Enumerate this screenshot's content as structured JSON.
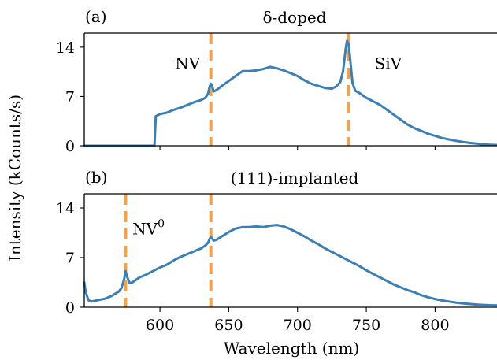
{
  "chart_data": [
    {
      "type": "line",
      "panel_label": "(a)",
      "title": "δ-doped",
      "xlim": [
        545,
        845
      ],
      "ylim": [
        0,
        16
      ],
      "yticks": [
        0,
        7,
        14
      ],
      "xticks": [
        600,
        650,
        700,
        750,
        800
      ],
      "ylabel": "Intensity (kCounts/s)",
      "markers": [
        637,
        737
      ],
      "annotations": [
        {
          "text": "NV⁻",
          "x": 611,
          "y": 10.9
        },
        {
          "text": "SiV",
          "x": 756,
          "y": 10.9
        }
      ],
      "series": [
        {
          "x": [
            545,
            560,
            575,
            590,
            596,
            597,
            598,
            600,
            605,
            610,
            615,
            620,
            625,
            630,
            633,
            635,
            636,
            637,
            638,
            639,
            641,
            645,
            650,
            655,
            660,
            665,
            670,
            675,
            680,
            685,
            690,
            695,
            700,
            705,
            710,
            715,
            720,
            725,
            728,
            731,
            733,
            734,
            735,
            736,
            737,
            738,
            739,
            740,
            742,
            745,
            750,
            755,
            760,
            765,
            770,
            775,
            780,
            785,
            790,
            795,
            800,
            805,
            810,
            815,
            820,
            825,
            830,
            835,
            840,
            845
          ],
          "y": [
            0,
            0,
            0,
            0,
            0,
            4.2,
            4.3,
            4.5,
            4.7,
            5.1,
            5.4,
            5.8,
            6.2,
            6.5,
            6.8,
            7.4,
            8.3,
            8.8,
            8.5,
            7.7,
            7.9,
            8.5,
            9.2,
            9.9,
            10.6,
            10.6,
            10.7,
            10.9,
            11.2,
            11.0,
            10.7,
            10.3,
            9.9,
            9.3,
            8.8,
            8.5,
            8.2,
            8.1,
            8.4,
            9.0,
            10.5,
            12.0,
            13.8,
            14.9,
            14.5,
            12.9,
            10.8,
            8.9,
            7.8,
            7.5,
            6.8,
            6.3,
            5.8,
            5.1,
            4.4,
            3.7,
            3.0,
            2.5,
            2.1,
            1.7,
            1.4,
            1.1,
            0.9,
            0.7,
            0.55,
            0.4,
            0.3,
            0.2,
            0.15,
            0.1
          ]
        }
      ]
    },
    {
      "type": "line",
      "panel_label": "(b)",
      "title": "(111)-implanted",
      "xlim": [
        545,
        845
      ],
      "ylim": [
        0,
        16
      ],
      "yticks": [
        0,
        7,
        14
      ],
      "xticks": [
        600,
        650,
        700,
        750,
        800
      ],
      "xlabel": "Wavelength (nm)",
      "markers": [
        575,
        637
      ],
      "annotations": [
        {
          "text": "NV",
          "sup": "0",
          "x": 580,
          "y": 10.3
        }
      ],
      "series": [
        {
          "x": [
            545,
            546,
            548,
            550,
            555,
            560,
            565,
            570,
            572,
            574,
            575,
            576,
            578,
            580,
            585,
            590,
            595,
            600,
            605,
            610,
            615,
            620,
            625,
            630,
            633,
            635,
            636,
            637,
            638,
            639,
            641,
            645,
            650,
            655,
            660,
            665,
            670,
            675,
            680,
            685,
            690,
            695,
            700,
            705,
            710,
            715,
            720,
            725,
            730,
            735,
            740,
            745,
            750,
            755,
            760,
            765,
            770,
            775,
            780,
            785,
            790,
            795,
            800,
            805,
            810,
            815,
            820,
            825,
            830,
            835,
            840,
            845
          ],
          "y": [
            3.5,
            2.2,
            1.0,
            0.8,
            1.0,
            1.2,
            1.6,
            2.2,
            2.7,
            4.0,
            5.1,
            4.4,
            3.4,
            3.5,
            4.2,
            4.6,
            5.1,
            5.6,
            6.0,
            6.6,
            7.1,
            7.5,
            7.9,
            8.3,
            8.7,
            9.1,
            9.6,
            9.9,
            9.7,
            9.4,
            9.5,
            10.0,
            10.6,
            11.1,
            11.3,
            11.3,
            11.4,
            11.3,
            11.5,
            11.6,
            11.4,
            11.0,
            10.5,
            10.0,
            9.4,
            8.9,
            8.3,
            7.8,
            7.3,
            6.8,
            6.3,
            5.8,
            5.2,
            4.7,
            4.2,
            3.7,
            3.2,
            2.8,
            2.4,
            2.1,
            1.7,
            1.4,
            1.15,
            0.95,
            0.8,
            0.65,
            0.55,
            0.45,
            0.38,
            0.32,
            0.28,
            0.25
          ]
        }
      ]
    }
  ]
}
